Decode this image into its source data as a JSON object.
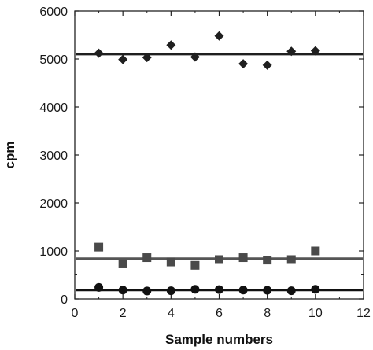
{
  "chart_data": {
    "type": "scatter",
    "xlabel": "Sample numbers",
    "ylabel": "cpm",
    "xlim": [
      0,
      12
    ],
    "ylim": [
      0,
      6000
    ],
    "xticks": [
      0,
      2,
      4,
      6,
      8,
      10,
      12
    ],
    "yticks": [
      0,
      1000,
      2000,
      3000,
      4000,
      5000,
      6000
    ],
    "grid": false,
    "series": [
      {
        "marker": "diamond",
        "color": "#1f1f1f",
        "x": [
          1,
          2,
          3,
          4,
          5,
          6,
          7,
          8,
          9,
          10
        ],
        "y": [
          5120,
          4990,
          5030,
          5290,
          5040,
          5480,
          4900,
          4870,
          5160,
          5170
        ],
        "trend": 5100,
        "trend_color": "#1f1f1f"
      },
      {
        "marker": "square",
        "color": "#4a4a4a",
        "x": [
          1,
          2,
          3,
          4,
          5,
          6,
          7,
          8,
          9,
          10
        ],
        "y": [
          1080,
          730,
          860,
          770,
          700,
          820,
          860,
          810,
          820,
          1000
        ],
        "trend": 840,
        "trend_color": "#555555"
      },
      {
        "marker": "circle",
        "color": "#111111",
        "x": [
          1,
          2,
          3,
          4,
          5,
          6,
          7,
          8,
          9,
          10
        ],
        "y": [
          240,
          185,
          165,
          170,
          200,
          195,
          185,
          180,
          170,
          200
        ],
        "trend": 185,
        "trend_color": "#111111"
      }
    ]
  }
}
